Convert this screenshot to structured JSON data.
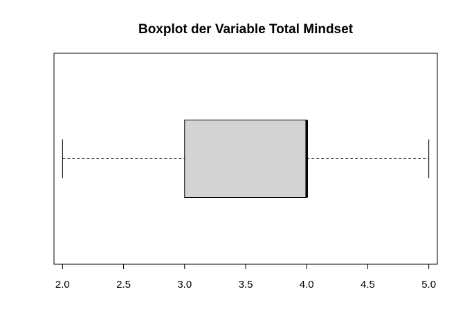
{
  "chart_data": {
    "type": "boxplot",
    "title": "Boxplot der Variable Total Mindset",
    "orientation": "horizontal",
    "xlabel": "",
    "ylabel": "",
    "xlim": [
      1.93,
      5.07
    ],
    "ticks": [
      2.0,
      2.5,
      3.0,
      3.5,
      4.0,
      4.5,
      5.0
    ],
    "tick_labels": [
      "2.0",
      "2.5",
      "3.0",
      "3.5",
      "4.0",
      "4.5",
      "5.0"
    ],
    "stats": {
      "min": 2.0,
      "q1": 3.0,
      "median": 4.0,
      "q3": 4.0,
      "max": 5.0
    },
    "grid": false,
    "box_color": "#d3d3d3"
  }
}
